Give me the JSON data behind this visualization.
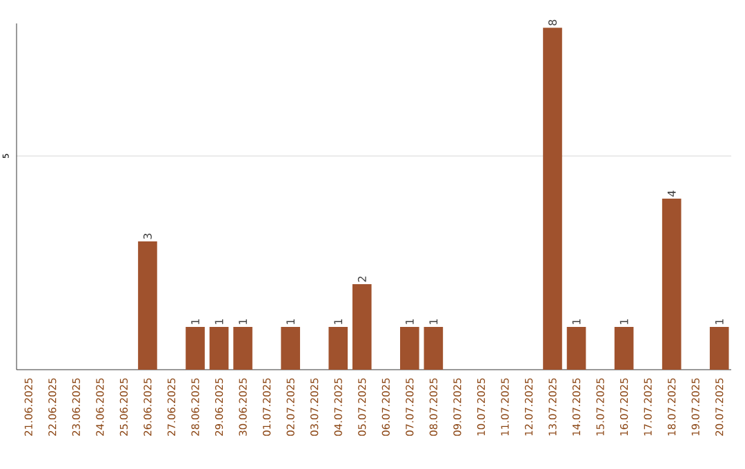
{
  "chart_data": {
    "type": "bar",
    "categories": [
      "21.06.2025",
      "22.06.2025",
      "23.06.2025",
      "24.06.2025",
      "25.06.2025",
      "26.06.2025",
      "27.06.2025",
      "28.06.2025",
      "29.06.2025",
      "30.06.2025",
      "01.07.2025",
      "02.07.2025",
      "03.07.2025",
      "04.07.2025",
      "05.07.2025",
      "06.07.2025",
      "07.07.2025",
      "08.07.2025",
      "09.07.2025",
      "10.07.2025",
      "11.07.2025",
      "12.07.2025",
      "13.07.2025",
      "14.07.2025",
      "15.07.2025",
      "16.07.2025",
      "17.07.2025",
      "18.07.2025",
      "19.07.2025",
      "20.07.2025"
    ],
    "values": [
      0,
      0,
      0,
      0,
      0,
      3,
      0,
      1,
      1,
      1,
      0,
      1,
      0,
      1,
      2,
      0,
      1,
      1,
      0,
      0,
      0,
      0,
      8,
      1,
      0,
      1,
      0,
      4,
      0,
      1
    ],
    "value_labels": [
      null,
      null,
      null,
      null,
      null,
      "3",
      null,
      "1",
      "1",
      "1",
      null,
      "1",
      null,
      "1",
      "2",
      null,
      "1",
      "1",
      null,
      null,
      null,
      null,
      "8",
      "1",
      null,
      "1",
      null,
      "4",
      null,
      "1"
    ],
    "color": "#a0522d",
    "ylim": [
      0,
      8.1
    ],
    "yticks": [
      5
    ],
    "grid": "y"
  }
}
